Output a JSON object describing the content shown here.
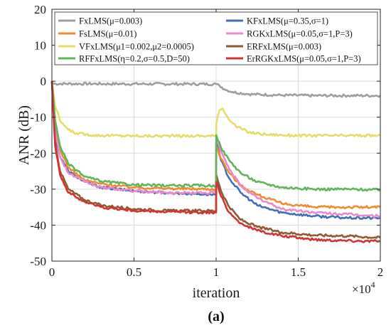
{
  "chart_data": {
    "type": "line",
    "xlabel": "iteration",
    "ylabel": "ANR (dB)",
    "x_multiplier_label": "×10",
    "x_multiplier_exp": "4",
    "caption_open": "(",
    "caption_letter": "a",
    "caption_close": ")",
    "xlim": [
      0,
      2
    ],
    "ylim": [
      -50,
      20
    ],
    "xticks": [
      0,
      0.5,
      1,
      1.5,
      2
    ],
    "xtick_labels": [
      "0",
      "0.5",
      "1",
      "1.5",
      "2"
    ],
    "yticks": [
      20,
      10,
      0,
      -10,
      -20,
      -30,
      -40,
      -50
    ],
    "ytick_labels": [
      "20",
      "10",
      "0",
      "-10",
      "-20",
      "-30",
      "-40",
      "-50"
    ],
    "grid": true,
    "legend_position": "top",
    "series": [
      {
        "name": "FxLMS(μ=0.003)",
        "color": "#9e9e9e",
        "x": [
          0,
          0.005,
          1.0,
          1.02,
          1.05,
          1.1,
          1.2,
          1.4,
          1.6,
          1.8,
          2.0
        ],
        "y": [
          0,
          -0.7,
          -0.8,
          -1.2,
          -2.2,
          -3.0,
          -3.6,
          -3.9,
          -4.0,
          -4.0,
          -4.0
        ]
      },
      {
        "name": "KFxLMS(μ=0.35,σ=1)",
        "color": "#3f6fb4",
        "x": [
          0,
          0.02,
          0.05,
          0.1,
          0.2,
          0.3,
          0.5,
          0.7,
          1.0,
          1.001,
          1.03,
          1.08,
          1.15,
          1.25,
          1.4,
          1.6,
          1.8,
          2.0
        ],
        "y": [
          0,
          -15,
          -21,
          -25,
          -28,
          -29.5,
          -30.5,
          -31,
          -31.5,
          -17,
          -22,
          -27,
          -31,
          -34.5,
          -36.5,
          -37.5,
          -38,
          -38
        ]
      },
      {
        "name": "FsLMS(μ=0.01)",
        "color": "#f08c30",
        "x": [
          0,
          0.02,
          0.05,
          0.1,
          0.2,
          0.3,
          0.5,
          0.7,
          1.0,
          1.001,
          1.03,
          1.08,
          1.15,
          1.25,
          1.4,
          1.6,
          1.8,
          2.0
        ],
        "y": [
          0,
          -12,
          -19,
          -24,
          -27.5,
          -28.5,
          -29.5,
          -29.8,
          -30,
          -18,
          -21.5,
          -25.5,
          -29,
          -31.5,
          -34,
          -35,
          -35,
          -35
        ]
      },
      {
        "name": "RGKxLMS(μ=0.05,σ=1,P=3)",
        "color": "#ee88cc",
        "x": [
          0,
          0.02,
          0.05,
          0.1,
          0.2,
          0.3,
          0.5,
          0.7,
          1.0,
          1.001,
          1.03,
          1.08,
          1.15,
          1.25,
          1.4,
          1.6,
          1.8,
          2.0
        ],
        "y": [
          0,
          -14,
          -21,
          -25.5,
          -28,
          -29.5,
          -30.5,
          -31,
          -31,
          -16,
          -19.5,
          -24.5,
          -29,
          -32.5,
          -35.5,
          -36.5,
          -37,
          -37.5
        ]
      },
      {
        "name": "VFxLMS(μ1=0.002,μ2=0.0005)",
        "color": "#e6dc6a",
        "x": [
          0,
          0.02,
          0.05,
          0.1,
          0.15,
          0.25,
          0.5,
          1.0,
          1.001,
          1.02,
          1.04,
          1.07,
          1.12,
          1.2,
          1.3,
          1.5,
          1.8,
          2.0
        ],
        "y": [
          0,
          -7,
          -11,
          -13.5,
          -14.5,
          -15,
          -15.2,
          -15.2,
          -12,
          -8,
          -7.6,
          -10,
          -12.5,
          -14.2,
          -14.8,
          -15.1,
          -15.1,
          -15.1
        ]
      },
      {
        "name": "ERFxLMS(μ=0.003)",
        "color": "#8e5b32",
        "x": [
          0,
          0.02,
          0.05,
          0.1,
          0.2,
          0.3,
          0.5,
          0.7,
          1.0,
          1.001,
          1.03,
          1.08,
          1.15,
          1.25,
          1.4,
          1.6,
          1.8,
          2.0
        ],
        "y": [
          0,
          -17,
          -25,
          -30,
          -33,
          -34.5,
          -35.5,
          -36,
          -36,
          -26,
          -30.5,
          -35,
          -38.5,
          -40.5,
          -42,
          -42.8,
          -43,
          -43.5
        ]
      },
      {
        "name": "RFFxLMS(η=0.2,σ=0.5,D=50)",
        "color": "#5fb55a",
        "x": [
          0,
          0.02,
          0.05,
          0.1,
          0.2,
          0.3,
          0.5,
          0.7,
          1.0,
          1.001,
          1.03,
          1.08,
          1.15,
          1.25,
          1.4,
          1.6,
          1.8,
          2.0
        ],
        "y": [
          0,
          -11,
          -18,
          -23,
          -26.5,
          -27.8,
          -28.8,
          -29,
          -29,
          -15,
          -18.5,
          -22,
          -25.5,
          -28,
          -29.5,
          -30,
          -30,
          -30.2
        ]
      },
      {
        "name": "ErRGKxLMS(μ=0.05,σ=1,P=3)",
        "color": "#d03434",
        "x": [
          0,
          0.02,
          0.05,
          0.1,
          0.2,
          0.3,
          0.5,
          0.7,
          1.0,
          1.001,
          1.03,
          1.08,
          1.15,
          1.25,
          1.4,
          1.6,
          1.8,
          2.0
        ],
        "y": [
          0,
          -18,
          -26,
          -31,
          -33.5,
          -35,
          -36,
          -36.3,
          -36.5,
          -28,
          -32,
          -36.5,
          -39.5,
          -41.5,
          -43,
          -44,
          -44.3,
          -44.5
        ]
      }
    ]
  }
}
